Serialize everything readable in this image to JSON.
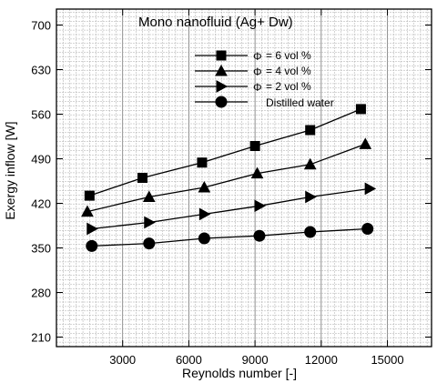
{
  "chart_data": {
    "type": "line",
    "title": "Mono nanofluid (Ag+ Dw)",
    "xlabel": "Reynolds number  [-]",
    "ylabel": "Exergy inflow   [W]",
    "xlim": [
      0,
      17000
    ],
    "ylim": [
      195,
      725
    ],
    "xticks": [
      "3000",
      "6000",
      "9000",
      "12000",
      "15000"
    ],
    "xtick_values": [
      3000,
      6000,
      9000,
      12000,
      15000
    ],
    "yticks": [
      "210",
      "280",
      "350",
      "420",
      "490",
      "560",
      "630",
      "700"
    ],
    "ytick_values": [
      210,
      280,
      350,
      420,
      490,
      560,
      630,
      700
    ],
    "grid": true,
    "legend_position": "top-right",
    "series": [
      {
        "name": "= 6 vol %",
        "phi": "Φ",
        "marker": "square",
        "x": [
          1500,
          3900,
          6600,
          9000,
          11500,
          13800
        ],
        "y": [
          432,
          460,
          484,
          510,
          535,
          568
        ]
      },
      {
        "name": "= 4 vol %",
        "phi": "Φ",
        "marker": "triangle-up",
        "x": [
          1400,
          4200,
          6700,
          9100,
          11500,
          14000
        ],
        "y": [
          407,
          430,
          445,
          467,
          481,
          513
        ]
      },
      {
        "name": "= 2 vol %",
        "phi": "Φ",
        "marker": "triangle-right",
        "x": [
          1600,
          4200,
          6700,
          9200,
          11500,
          14200
        ],
        "y": [
          380,
          390,
          403,
          416,
          430,
          443
        ]
      },
      {
        "name": "Distilled water",
        "phi": "",
        "marker": "circle",
        "x": [
          1600,
          4200,
          6700,
          9200,
          11500,
          14100
        ],
        "y": [
          353,
          357,
          365,
          369,
          375,
          380
        ]
      }
    ]
  }
}
